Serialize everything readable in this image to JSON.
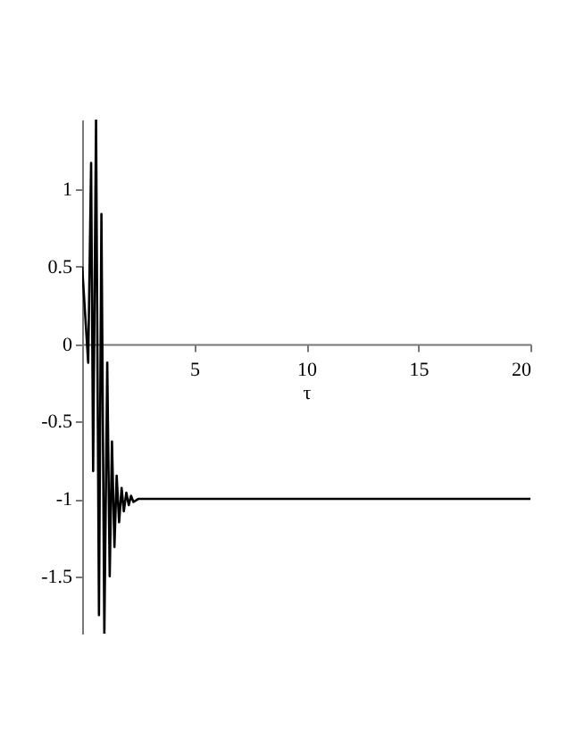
{
  "chart_data": {
    "type": "line",
    "xlabel": "τ",
    "x": [
      0,
      0.27,
      0.4,
      0.49,
      0.62,
      0.75,
      0.86,
      0.99,
      1.12,
      1.23,
      1.33,
      1.44,
      1.54,
      1.65,
      1.76,
      1.86,
      1.97,
      2.08,
      2.18,
      2.29,
      2.5,
      20
    ],
    "series": [
      {
        "color": "#000000",
        "values": [
          0.5,
          -0.12,
          1.17,
          -0.82,
          1.45,
          -1.75,
          0.84,
          -1.87,
          -0.12,
          -1.5,
          -0.63,
          -1.31,
          -0.85,
          -1.15,
          -0.93,
          -1.08,
          -0.96,
          -1.04,
          -0.98,
          -1.02,
          -1,
          -1
        ]
      }
    ],
    "xlim": [
      0,
      20
    ],
    "ylim": [
      -1.87,
      1.45
    ],
    "xticks": [
      5,
      10,
      15,
      20
    ],
    "yticks": [
      -1.5,
      -1,
      -0.5,
      0,
      0.5,
      1
    ],
    "grid": false,
    "legend": false,
    "marker": "none",
    "line_style": "solid"
  }
}
